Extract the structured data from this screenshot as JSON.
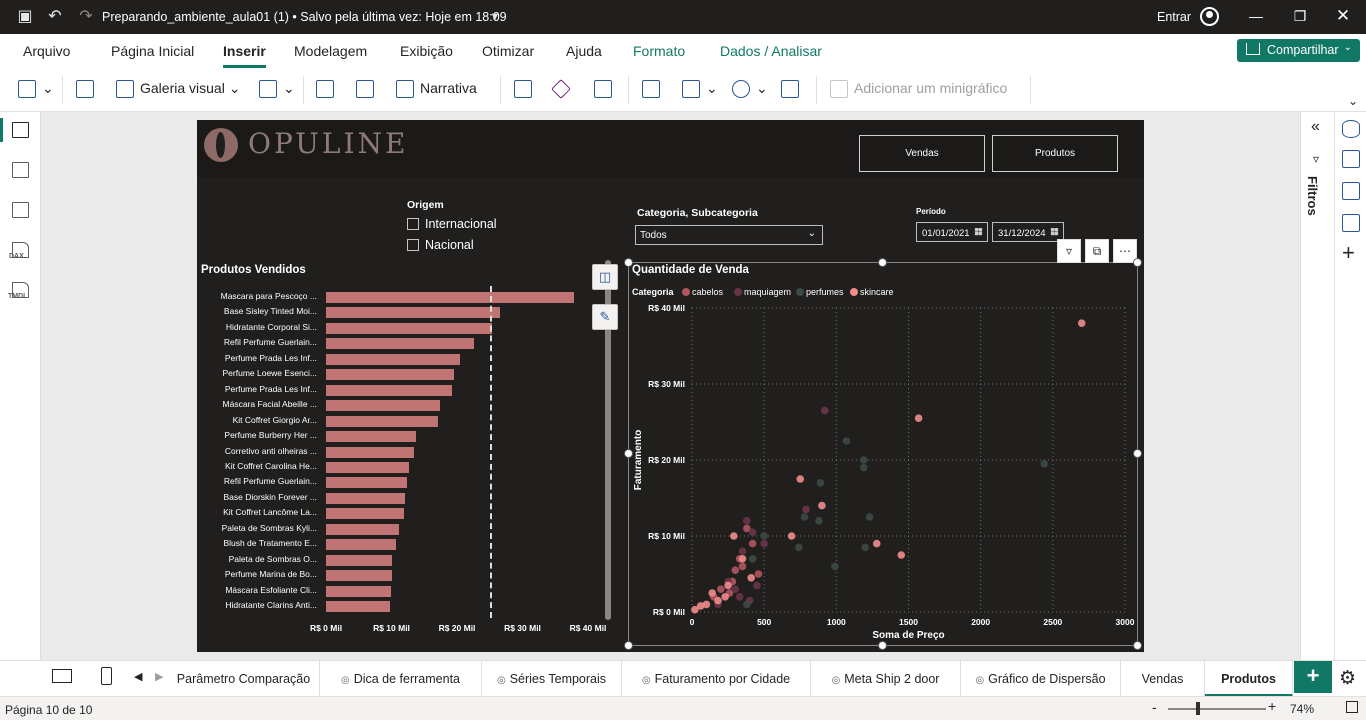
{
  "titlebar": {
    "title": "Preparando_ambiente_aula01 (1) • Salvo pela última vez: Hoje em 18:09",
    "signin": "Entrar"
  },
  "ribbon": {
    "tabs": [
      "Arquivo",
      "Página Inicial",
      "Inserir",
      "Modelagem",
      "Exibição",
      "Otimizar",
      "Ajuda",
      "Formato",
      "Dados / Analisar"
    ],
    "active_tab": "Inserir",
    "share": "Compartilhar"
  },
  "toolbar": {
    "galeria_visual": "Galeria visual",
    "narrativa": "Narrativa",
    "minigrafico": "Adicionar um minigráfico"
  },
  "report": {
    "logo": "OPULINE",
    "nav_buttons": [
      "Vendas",
      "Produtos"
    ],
    "origem": {
      "title": "Origem",
      "options": [
        "Internacional",
        "Nacional"
      ]
    },
    "categoria": {
      "title": "Categoria, Subcategoria",
      "value": "Todos"
    },
    "periodo": {
      "title": "Período",
      "start": "01/01/2021",
      "end": "31/12/2024"
    }
  },
  "chart_data": [
    {
      "type": "bar",
      "title": "Produtos Vendidos",
      "orientation": "horizontal",
      "categories": [
        "Mascara para Pescoço ...",
        "Base Sisley Tinted Moi...",
        "Hidratante Corporal Si...",
        "Refil Perfume Guerlain...",
        "Perfume Prada Les Inf...",
        "Perfume Loewe Esenci...",
        "Perfume Prada Les Inf...",
        "Máscara Facial Abeille ...",
        "Kit Coffret Giorgio Ar...",
        "Perfume Burberry Her ...",
        "Corretivo anti olheiras ...",
        "Kit Coffret Carolina He...",
        "Refil Perfume Guerlain...",
        "Base Diorskin Forever ...",
        "Kit Coffret Lancôme La...",
        "Paleta de Sombras Kyli...",
        "Blush de Tratamento E...",
        "Paleta de Sombras O...",
        "Perfume Marina de Bo...",
        "Máscara Esfoliante Cli...",
        "Hidratante Clarins Anti..."
      ],
      "values": [
        37.8,
        26.5,
        25.4,
        22.6,
        20.5,
        19.5,
        19.2,
        17.4,
        17.1,
        13.7,
        13.5,
        12.6,
        12.4,
        12.1,
        11.9,
        11.2,
        10.7,
        10.1,
        10.0,
        9.9,
        9.8
      ],
      "value_unit": "R$ Mil",
      "x_ticks": [
        "R$ 0 Mil",
        "R$ 10 Mil",
        "R$ 20 Mil",
        "R$ 30 Mil",
        "R$ 40 Mil"
      ],
      "xlim": [
        0,
        40
      ],
      "reference_line": 25,
      "color": "#c07574"
    },
    {
      "type": "scatter",
      "title": "Quantidade de Venda",
      "xlabel": "Soma de Preço",
      "ylabel": "Faturamento",
      "legend_title": "Categoria",
      "legend_position": "top-left",
      "x_ticks": [
        "0",
        "500",
        "1000",
        "1500",
        "2000",
        "2500",
        "3000"
      ],
      "y_ticks": [
        "R$ 0 Mil",
        "R$ 10 Mil",
        "R$ 20 Mil",
        "R$ 30 Mil",
        "R$ 40 Mil"
      ],
      "xlim": [
        0,
        3000
      ],
      "ylim": [
        0,
        40
      ],
      "grid": true,
      "series": [
        {
          "name": "cabelos",
          "color": "#b05560",
          "points": [
            [
              200,
              3
            ],
            [
              350,
              6
            ],
            [
              420,
              9
            ],
            [
              280,
              4
            ],
            [
              380,
              11
            ],
            [
              150,
              2
            ],
            [
              460,
              5
            ],
            [
              330,
              7
            ],
            [
              260,
              2.5
            ],
            [
              300,
              5.5
            ]
          ]
        },
        {
          "name": "maquiagem",
          "color": "#6a3448",
          "points": [
            [
              920,
              26.5
            ],
            [
              790,
              13.5
            ],
            [
              380,
              12
            ],
            [
              420,
              10.5
            ],
            [
              350,
              8
            ],
            [
              300,
              3
            ],
            [
              250,
              4
            ],
            [
              400,
              1.5
            ],
            [
              450,
              3.5
            ],
            [
              180,
              1
            ],
            [
              500,
              9
            ],
            [
              330,
              2
            ]
          ]
        },
        {
          "name": "perfumes",
          "color": "#3c4a44",
          "points": [
            [
              1070,
              22.5
            ],
            [
              1190,
              20
            ],
            [
              1190,
              19
            ],
            [
              2440,
              19.5
            ],
            [
              890,
              17
            ],
            [
              880,
              12
            ],
            [
              780,
              12.5
            ],
            [
              1230,
              12.5
            ],
            [
              1200,
              8.5
            ],
            [
              990,
              6
            ],
            [
              740,
              8.5
            ],
            [
              380,
              1
            ],
            [
              420,
              7
            ],
            [
              500,
              10
            ]
          ]
        },
        {
          "name": "skincare",
          "color": "#ef8c8c",
          "points": [
            [
              2700,
              38
            ],
            [
              1570,
              25.5
            ],
            [
              750,
              17.5
            ],
            [
              900,
              14
            ],
            [
              690,
              10
            ],
            [
              1280,
              9
            ],
            [
              1450,
              7.5
            ],
            [
              290,
              10
            ],
            [
              350,
              7
            ],
            [
              180,
              1.5
            ],
            [
              100,
              1
            ],
            [
              20,
              0.3
            ],
            [
              140,
              2.5
            ],
            [
              250,
              3.5
            ],
            [
              410,
              4.5
            ],
            [
              230,
              2
            ],
            [
              60,
              0.8
            ]
          ]
        }
      ]
    }
  ],
  "pages": {
    "tabs": [
      "Parâmetro Comparação",
      "Dica de ferramenta",
      "Séries Temporais",
      "Faturamento por Cidade",
      "Meta Ship 2 door",
      "Gráfico de Dispersão",
      "Vendas",
      "Produtos"
    ],
    "active": "Produtos"
  },
  "filters_label": "Filtros",
  "status": {
    "page": "Página 10 de 10",
    "zoom": "74%"
  }
}
